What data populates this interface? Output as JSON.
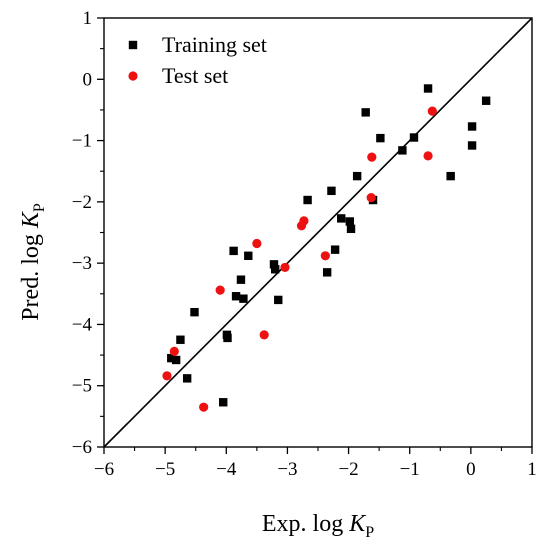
{
  "chart_data": {
    "type": "scatter",
    "xlabel": {
      "main": "Exp. log ",
      "var": "K",
      "sub": "P"
    },
    "ylabel": {
      "main": "Pred. log ",
      "var": "K",
      "sub": "P"
    },
    "xlim": [
      -6,
      1
    ],
    "ylim": [
      -6,
      1
    ],
    "xticks": [
      "−6",
      "−5",
      "−4",
      "−3",
      "−2",
      "−1",
      "0",
      "1"
    ],
    "yticks": [
      "−6",
      "−5",
      "−4",
      "−3",
      "−2",
      "−1",
      "0",
      "1"
    ],
    "xtick_values": [
      -6,
      -5,
      -4,
      -3,
      -2,
      -1,
      0,
      1
    ],
    "ytick_values": [
      -6,
      -5,
      -4,
      -3,
      -2,
      -1,
      0,
      1
    ],
    "grid": false,
    "legend_position": "top-left",
    "reference_line": {
      "from": [
        -6,
        -6
      ],
      "to": [
        1,
        1
      ]
    },
    "series": [
      {
        "name": "Training set",
        "marker": "square",
        "color": "#000000",
        "points": [
          [
            -4.9,
            -4.55
          ],
          [
            -4.82,
            -4.58
          ],
          [
            -4.75,
            -4.25
          ],
          [
            -4.64,
            -4.88
          ],
          [
            -4.52,
            -3.8
          ],
          [
            -4.05,
            -5.27
          ],
          [
            -3.99,
            -4.17
          ],
          [
            -3.98,
            -4.22
          ],
          [
            -3.88,
            -2.8
          ],
          [
            -3.84,
            -3.54
          ],
          [
            -3.76,
            -3.27
          ],
          [
            -3.72,
            -3.58
          ],
          [
            -3.64,
            -2.88
          ],
          [
            -3.22,
            -3.02
          ],
          [
            -3.2,
            -3.1
          ],
          [
            -3.15,
            -3.6
          ],
          [
            -2.67,
            -1.97
          ],
          [
            -2.35,
            -3.15
          ],
          [
            -2.28,
            -1.82
          ],
          [
            -2.22,
            -2.78
          ],
          [
            -2.12,
            -2.27
          ],
          [
            -1.98,
            -2.32
          ],
          [
            -1.96,
            -2.44
          ],
          [
            -1.86,
            -1.58
          ],
          [
            -1.72,
            -0.54
          ],
          [
            -1.6,
            -1.97
          ],
          [
            -1.48,
            -0.96
          ],
          [
            -1.12,
            -1.16
          ],
          [
            -0.93,
            -0.95
          ],
          [
            -0.33,
            -1.58
          ],
          [
            -0.7,
            -0.15
          ],
          [
            0.02,
            -0.77
          ],
          [
            0.02,
            -1.08
          ],
          [
            0.25,
            -0.35
          ]
        ]
      },
      {
        "name": "Test set",
        "marker": "circle",
        "color": "#ee1111",
        "points": [
          [
            -4.97,
            -4.84
          ],
          [
            -4.85,
            -4.44
          ],
          [
            -4.37,
            -5.35
          ],
          [
            -4.1,
            -3.44
          ],
          [
            -3.5,
            -2.68
          ],
          [
            -3.38,
            -4.17
          ],
          [
            -3.04,
            -3.07
          ],
          [
            -2.77,
            -2.39
          ],
          [
            -2.73,
            -2.31
          ],
          [
            -2.38,
            -2.88
          ],
          [
            -1.63,
            -1.93
          ],
          [
            -1.62,
            -1.27
          ],
          [
            -0.7,
            -1.25
          ],
          [
            -0.63,
            -0.52
          ]
        ]
      }
    ]
  }
}
